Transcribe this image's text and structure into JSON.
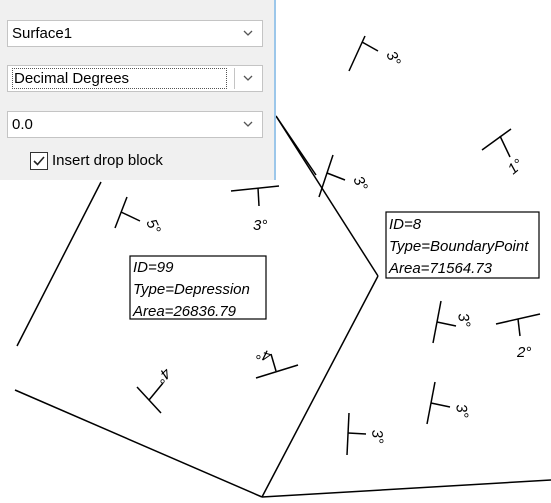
{
  "toolbar": {
    "surface": {
      "value": "Surface1"
    },
    "angle_format": {
      "value": "Decimal Degrees"
    },
    "rotation": {
      "value": "0.0"
    },
    "insert_drop_block": {
      "label": "Insert drop block",
      "checked": true
    }
  },
  "drawing": {
    "labels": [
      {
        "lines": [
          "ID=99",
          "Type=Depression",
          "Area=26836.79"
        ]
      },
      {
        "lines": [
          "ID=8",
          "Type=BoundaryPoint",
          "Area=71564.73"
        ]
      }
    ],
    "slope_angles": [
      "3°",
      "1°",
      "3°",
      "3°",
      "5°",
      "3°",
      "2°",
      "4°",
      "4°",
      "3°",
      "3°"
    ]
  },
  "colors": {
    "panel_bg": "#f0f0f0",
    "panel_border": "#9cc7ea",
    "linework": "#000000"
  }
}
